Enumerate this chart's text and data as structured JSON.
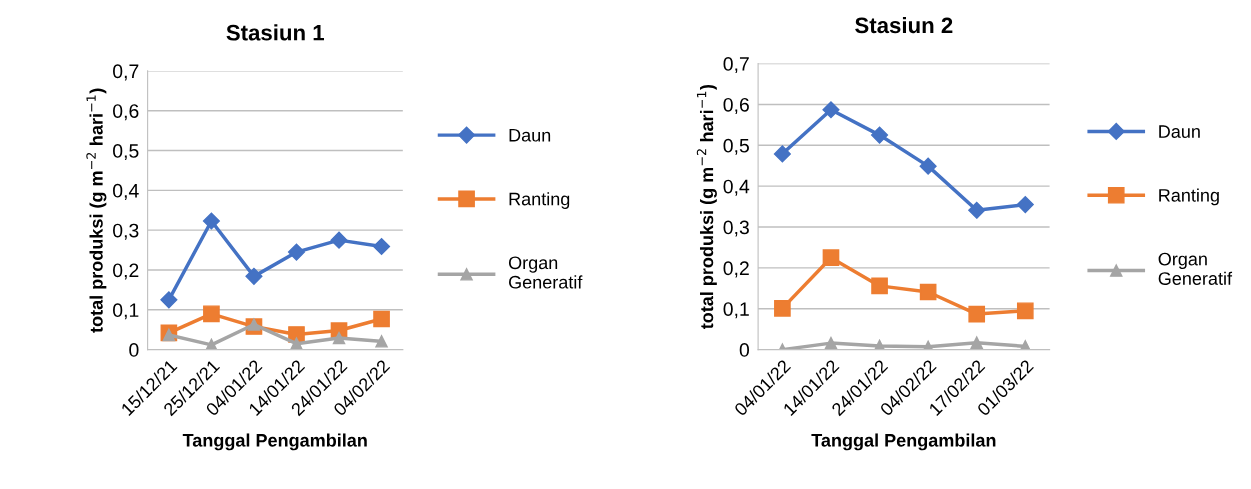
{
  "chart_data": [
    {
      "type": "line",
      "title": "Stasiun 1",
      "xlabel": "Tanggal Pengambilan",
      "ylabel": "total produksi (g m$^{−2}$ hari$^{−1}$)",
      "categories": [
        "15/12/21",
        "25/12/21",
        "04/01/22",
        "14/01/22",
        "24/01/22",
        "04/02/22"
      ],
      "series": [
        {
          "name": "Daun",
          "color": "#4472c4",
          "marker": "diamond",
          "values": [
            0.125,
            0.323,
            0.184,
            0.245,
            0.275,
            0.259
          ]
        },
        {
          "name": "Ranting",
          "color": "#ed7d31",
          "marker": "square",
          "values": [
            0.042,
            0.09,
            0.058,
            0.038,
            0.048,
            0.077
          ]
        },
        {
          "name": "Organ Generatif",
          "color": "#a5a5a5",
          "marker": "triangle",
          "values": [
            0.037,
            0.012,
            0.063,
            0.015,
            0.029,
            0.021
          ]
        }
      ],
      "ylim": [
        0,
        0.7
      ],
      "yticks": [
        0,
        {
          "value": 0.1,
          "label": "0,1"
        },
        {
          "value": 0.2,
          "label": "0,2"
        },
        {
          "value": 0.3,
          "label": "0,3"
        },
        {
          "value": 0.4,
          "label": "0,4"
        },
        {
          "value": 0.5,
          "label": "0,5"
        },
        {
          "value": 0.6,
          "label": "0,6"
        },
        {
          "value": 0.7,
          "label": "0,7"
        }
      ],
      "grid": "y",
      "legend": "right",
      "line_style": "solid"
    },
    {
      "type": "line",
      "title": "Stasiun 2",
      "xlabel": "Tanggal Pengambilan",
      "ylabel": "total produksi (g m$^{−2}$ hari$^{−1}$)",
      "categories": [
        "04/01/22",
        "14/01/22",
        "24/01/22",
        "04/02/22",
        "17/02/22",
        "01/03/22"
      ],
      "series": [
        {
          "name": "Daun",
          "color": "#4472c4",
          "marker": "diamond",
          "values": [
            0.479,
            0.587,
            0.525,
            0.449,
            0.341,
            0.355
          ]
        },
        {
          "name": "Ranting",
          "color": "#ed7d31",
          "marker": "square",
          "values": [
            0.101,
            0.225,
            0.156,
            0.141,
            0.087,
            0.095
          ]
        },
        {
          "name": "Organ Generatif",
          "color": "#a5a5a5",
          "marker": "triangle",
          "values": [
            0.0,
            0.016,
            0.009,
            0.007,
            0.017,
            0.008
          ]
        }
      ],
      "ylim": [
        0,
        0.7
      ],
      "yticks": [
        0,
        {
          "value": 0.1,
          "label": "0,1"
        },
        {
          "value": 0.2,
          "label": "0,2"
        },
        {
          "value": 0.3,
          "label": "0,3"
        },
        {
          "value": 0.4,
          "label": "0,4"
        },
        {
          "value": 0.5,
          "label": "0,5"
        },
        {
          "value": 0.6,
          "label": "0,6"
        },
        {
          "value": 0.7,
          "label": "0,7"
        }
      ],
      "grid": "y",
      "legend": "right",
      "line_style": "solid"
    }
  ]
}
